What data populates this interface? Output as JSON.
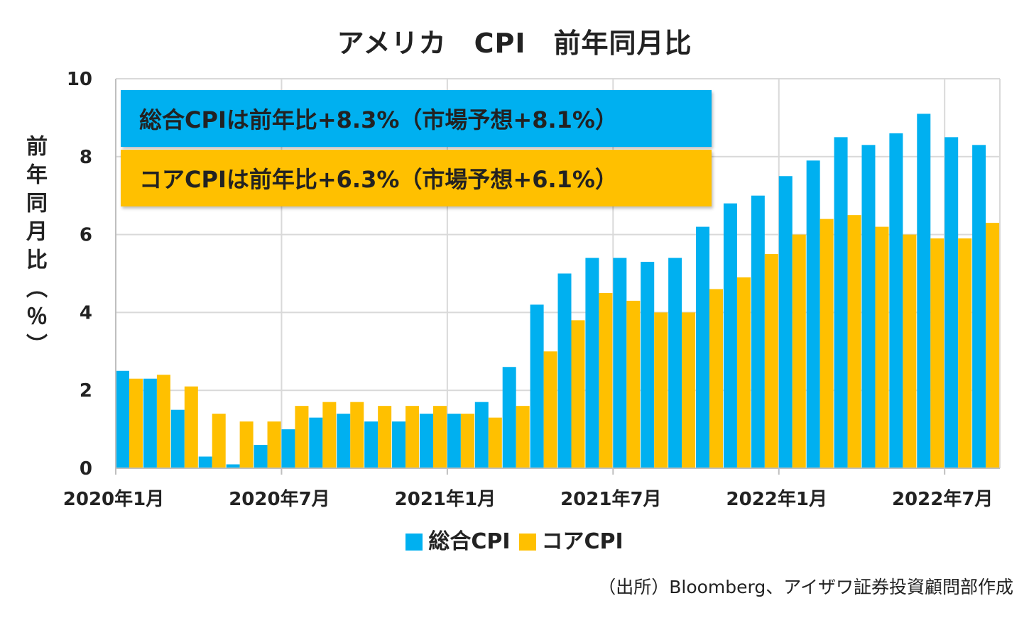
{
  "chart_data": {
    "type": "bar",
    "title": "アメリカ　CPI　前年同月比",
    "ylabel": "前年同月比（％）",
    "xlabel": "",
    "ylim": [
      0,
      10
    ],
    "yticks": [
      "0",
      "2",
      "4",
      "6",
      "8",
      "10"
    ],
    "categories": [
      "2020-01",
      "2020-02",
      "2020-03",
      "2020-04",
      "2020-05",
      "2020-06",
      "2020-07",
      "2020-08",
      "2020-09",
      "2020-10",
      "2020-11",
      "2020-12",
      "2021-01",
      "2021-02",
      "2021-03",
      "2021-04",
      "2021-05",
      "2021-06",
      "2021-07",
      "2021-08",
      "2021-09",
      "2021-10",
      "2021-11",
      "2021-12",
      "2022-01",
      "2022-02",
      "2022-03",
      "2022-04",
      "2022-05",
      "2022-06",
      "2022-07",
      "2022-08"
    ],
    "xtick_labels": [
      {
        "label": "2020年1月",
        "index": 0
      },
      {
        "label": "2020年7月",
        "index": 6
      },
      {
        "label": "2021年1月",
        "index": 12
      },
      {
        "label": "2021年7月",
        "index": 18
      },
      {
        "label": "2022年1月",
        "index": 24
      },
      {
        "label": "2022年7月",
        "index": 30
      }
    ],
    "series": [
      {
        "name": "総合CPI",
        "color": "#00b0f0",
        "values": [
          2.5,
          2.3,
          1.5,
          0.3,
          0.1,
          0.6,
          1.0,
          1.3,
          1.4,
          1.2,
          1.2,
          1.4,
          1.4,
          1.7,
          2.6,
          4.2,
          5.0,
          5.4,
          5.4,
          5.3,
          5.4,
          6.2,
          6.8,
          7.0,
          7.5,
          7.9,
          8.5,
          8.3,
          8.6,
          9.1,
          8.5,
          8.3
        ]
      },
      {
        "name": "コアCPI",
        "color": "#ffc000",
        "values": [
          2.3,
          2.4,
          2.1,
          1.4,
          1.2,
          1.2,
          1.6,
          1.7,
          1.7,
          1.6,
          1.6,
          1.6,
          1.4,
          1.3,
          1.6,
          3.0,
          3.8,
          4.5,
          4.3,
          4.0,
          4.0,
          4.6,
          4.9,
          5.5,
          6.0,
          6.4,
          6.5,
          6.2,
          6.0,
          5.9,
          5.9,
          6.3
        ]
      }
    ],
    "grid": true,
    "legend_position": "bottom",
    "annotations": [
      "総合CPIは前年比+8.3%（市場予想+8.1%）",
      "コアCPIは前年比+6.3%（市場予想+6.1%）"
    ]
  },
  "source_note": "（出所）Bloomberg、アイザワ証券投資顧問部作成"
}
